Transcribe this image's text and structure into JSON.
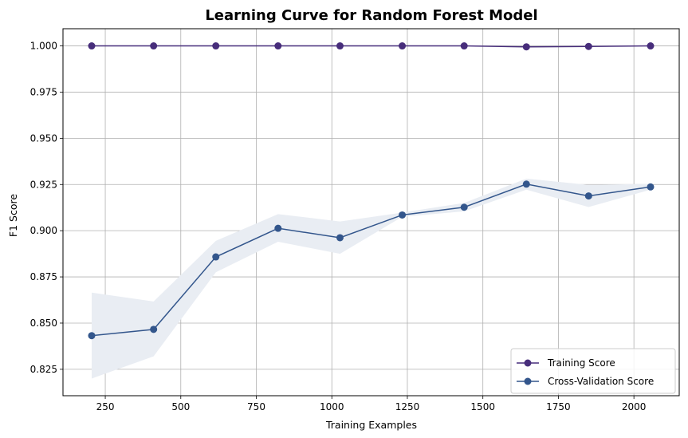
{
  "chart_data": {
    "type": "line",
    "title": "Learning Curve for Random Forest Model",
    "xlabel": "Training Examples",
    "ylabel": "F1 Score",
    "xlim": [
      110,
      2150
    ],
    "ylim": [
      0.8107,
      1.0093
    ],
    "xticks": [
      250,
      500,
      750,
      1000,
      1250,
      1500,
      1750,
      2000
    ],
    "yticks": [
      0.825,
      0.85,
      0.875,
      0.9,
      0.925,
      0.95,
      0.975,
      1.0
    ],
    "xtick_labels": [
      "250",
      "500",
      "750",
      "1000",
      "1250",
      "1500",
      "1750",
      "2000"
    ],
    "ytick_labels": [
      "0.825",
      "0.850",
      "0.875",
      "0.900",
      "0.925",
      "0.950",
      "0.975",
      "1.000"
    ],
    "grid": true,
    "legend_position": "lower right",
    "x": [
      205,
      410,
      616,
      822,
      1027,
      1233,
      1438,
      1644,
      1850,
      2055
    ],
    "series": [
      {
        "name": "Training Score",
        "color": "#472d7b",
        "values": [
          1.0,
          1.0,
          1.0,
          1.0,
          1.0,
          1.0,
          1.0,
          0.9995,
          0.9997,
          1.0
        ],
        "band_lower": [
          1.0,
          1.0,
          1.0,
          1.0,
          1.0,
          1.0,
          1.0,
          0.9995,
          0.9997,
          1.0
        ],
        "band_upper": [
          1.0,
          1.0,
          1.0,
          1.0,
          1.0,
          1.0,
          1.0,
          0.9995,
          0.9997,
          1.0
        ]
      },
      {
        "name": "Cross-Validation Score",
        "color": "#33568c",
        "values": [
          0.8432,
          0.8466,
          0.8858,
          0.9013,
          0.8962,
          0.9085,
          0.9127,
          0.9252,
          0.9188,
          0.9237
        ],
        "band_lower": [
          0.82,
          0.832,
          0.8775,
          0.894,
          0.8875,
          0.9075,
          0.9105,
          0.9222,
          0.9128,
          0.9222
        ],
        "band_upper": [
          0.8665,
          0.8617,
          0.8945,
          0.909,
          0.905,
          0.9098,
          0.915,
          0.9282,
          0.9248,
          0.9253
        ],
        "band_color": "#e9edf3"
      }
    ]
  }
}
